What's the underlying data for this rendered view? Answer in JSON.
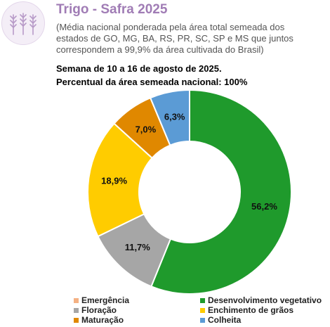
{
  "header": {
    "title": "Trigo - Safra 2025",
    "subtitle_lines": [
      "(Média nacional ponderada pela área total semeada dos",
      "estados de GO, MG, BA, RS, PR, SC, SP e MS que juntos",
      "correspondem a 99,9% da área cultivada do Brasil)"
    ],
    "week": "Semana de 10 a 16 de agosto de 2025.",
    "area": "Percentual da área semeada nacional: 100%"
  },
  "chart_data": {
    "type": "pie",
    "donut": true,
    "title": "",
    "series": [
      {
        "name": "Emergência",
        "value": 0.0,
        "label": "",
        "color": "#f4b183"
      },
      {
        "name": "Desenvolvimento vegetativo",
        "value": 56.2,
        "label": "56,2%",
        "color": "#1f9a2c"
      },
      {
        "name": "Floração",
        "value": 11.7,
        "label": "11,7%",
        "color": "#a6a6a6"
      },
      {
        "name": "Enchimento de grãos",
        "value": 18.9,
        "label": "18,9%",
        "color": "#ffcc00"
      },
      {
        "name": "Maturação",
        "value": 7.0,
        "label": "7,0%",
        "color": "#e08800"
      },
      {
        "name": "Colheita",
        "value": 6.3,
        "label": "6,3%",
        "color": "#5b9bd5"
      }
    ],
    "legend_position": "bottom"
  }
}
